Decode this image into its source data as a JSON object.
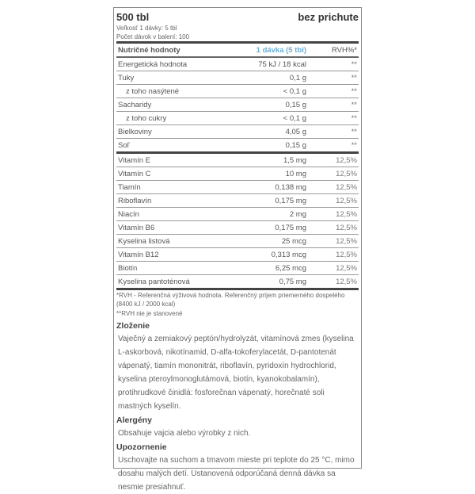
{
  "header": {
    "title": "500 tbl",
    "flavor": "bez prichute",
    "serving_size": "Veľkosť 1 dávky: 5 tbl",
    "servings": "Počet dávok v balení: 100"
  },
  "table": {
    "col_name": "Nutričné hodnoty",
    "col_amount": "1 dávka (5 tbl)",
    "col_rvh": "RVH%*",
    "rows": [
      {
        "name": "Energetická hodnota",
        "amount": "75 kJ / 18 kcal",
        "rvh": "**"
      },
      {
        "name": "Tuky",
        "amount": "0,1 g",
        "rvh": "**"
      },
      {
        "name": "z toho nasýtené",
        "amount": "< 0,1 g",
        "rvh": "**"
      },
      {
        "name": "Sacharidy",
        "amount": "0,15 g",
        "rvh": "**"
      },
      {
        "name": "z toho cukry",
        "amount": "< 0,1 g",
        "rvh": "**"
      },
      {
        "name": "Bielkoviny",
        "amount": "4,05 g",
        "rvh": "**"
      },
      {
        "name": "Soľ",
        "amount": "0,15 g",
        "rvh": "**"
      },
      {
        "name": "Vitamín E",
        "amount": "1,5 mg",
        "rvh": "12,5%"
      },
      {
        "name": "Vitamín C",
        "amount": "10 mg",
        "rvh": "12,5%"
      },
      {
        "name": "Tiamín",
        "amount": "0,138 mg",
        "rvh": "12,5%"
      },
      {
        "name": "Riboflavín",
        "amount": "0,175 mg",
        "rvh": "12,5%"
      },
      {
        "name": "Niacín",
        "amount": "2 mg",
        "rvh": "12,5%"
      },
      {
        "name": "Vitamín B6",
        "amount": "0,175 mg",
        "rvh": "12,5%"
      },
      {
        "name": "Kyselina listová",
        "amount": "25 mcg",
        "rvh": "12,5%"
      },
      {
        "name": "Vitamín B12",
        "amount": "0,313 mcg",
        "rvh": "12,5%"
      },
      {
        "name": "Biotín",
        "amount": "6,25 mcg",
        "rvh": "12,5%"
      },
      {
        "name": "Kyselina pantoténová",
        "amount": "0,75 mg",
        "rvh": "12,5%"
      }
    ]
  },
  "notes": {
    "rvh": "*RVH - Referenčná výživová hodnota. Referenčný príjem priemerného dospelého (8400 kJ / 2000 kcal)",
    "not_set": "**RVH nie je stanovené"
  },
  "composition": {
    "title": "Zloženie",
    "text": "Vaječný a zemiakový peptón/hydrolyzát, vitamínová zmes (kyselina L-askorbová, nikotínamid, D-alfa-tokoferylacetát, D-pantotenát vápenatý, tiamín mononitrát, riboflavín, pyridoxín hydrochlorid, kyselina pteroylmonoglutámová, biotín, kyanokobalamín), protihrudkové činidlá: fosforečnan vápenatý, horečnaté soli mastných kyselín."
  },
  "allergens": {
    "title": "Alergény",
    "text": "Obsahuje vajcia alebo výrobky z nich."
  },
  "warning": {
    "title": "Upozornenie",
    "text": "Uschovajte na suchom a tmavom mieste pri teplote do 25 °C, mimo dosahu malých detí. Ustanovená odporúčaná denná dávka sa nesmie presiahnuť."
  }
}
